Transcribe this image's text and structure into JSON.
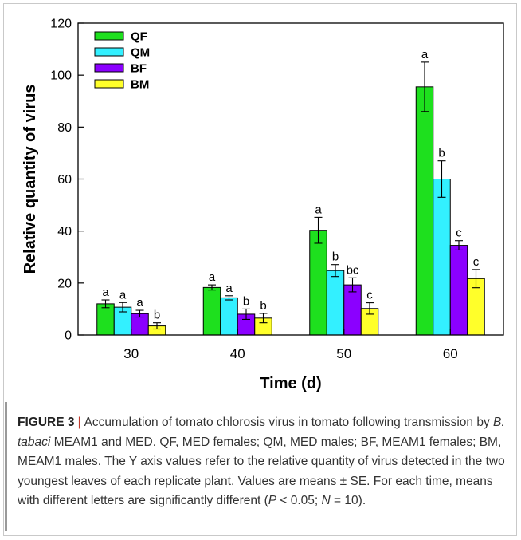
{
  "chart_data": {
    "type": "bar",
    "xlabel": "Time (d)",
    "ylabel": "Relative quantity of virus",
    "ylim": [
      0,
      120
    ],
    "yticks": [
      0,
      20,
      40,
      60,
      80,
      100,
      120
    ],
    "categories": [
      "30",
      "40",
      "50",
      "60"
    ],
    "legend_position": "top-left",
    "series": [
      {
        "name": "QF",
        "color": "#1ee01e",
        "values": [
          12.0,
          18.3,
          40.3,
          95.5
        ],
        "errors": [
          1.5,
          1.0,
          5.0,
          9.5
        ],
        "letters": [
          "a",
          "a",
          "a",
          "a"
        ]
      },
      {
        "name": "QM",
        "color": "#33f0ff",
        "values": [
          10.7,
          14.3,
          24.8,
          60.0
        ],
        "errors": [
          1.8,
          0.8,
          2.3,
          7.0
        ],
        "letters": [
          "a",
          "a",
          "b",
          "b"
        ]
      },
      {
        "name": "BF",
        "color": "#8b00ff",
        "values": [
          8.2,
          8.0,
          19.3,
          34.5
        ],
        "errors": [
          1.3,
          2.0,
          2.7,
          1.8
        ],
        "letters": [
          "a",
          "b",
          "bc",
          "c"
        ]
      },
      {
        "name": "BM",
        "color": "#ffff2a",
        "values": [
          3.5,
          6.5,
          10.2,
          21.7
        ],
        "errors": [
          1.2,
          1.8,
          2.2,
          3.5
        ],
        "letters": [
          "b",
          "b",
          "c",
          "c"
        ]
      }
    ]
  },
  "caption": {
    "label": "FIGURE 3",
    "separator": "|",
    "text_1": " Accumulation of tomato chlorosis virus in tomato following transmission by ",
    "species": "B. tabaci",
    "text_2": " MEAM1 and MED. QF, MED females; QM, MED males; BF, MEAM1 females; BM, MEAM1 males. The Y axis values refer to the relative quantity of virus detected in the two youngest leaves of each replicate plant. Values are means ± SE. For each time, means with different letters are significantly different (",
    "p_symbol": "P",
    "text_3": " < 0.05; ",
    "n_symbol": "N",
    "text_4": " = 10)."
  }
}
